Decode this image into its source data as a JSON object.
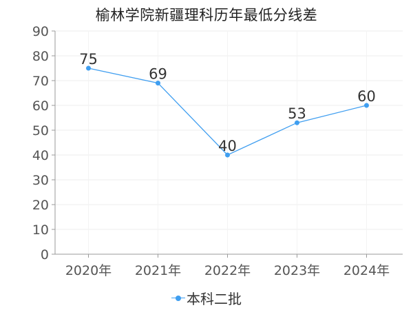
{
  "chart_data": {
    "type": "line",
    "title": "榆林学院新疆理科历年最低分线差",
    "xlabel": "",
    "ylabel": "",
    "categories": [
      "2020年",
      "2021年",
      "2022年",
      "2023年",
      "2024年"
    ],
    "series": [
      {
        "name": "本科二批",
        "values": [
          75,
          69,
          40,
          53,
          60
        ],
        "color": "#3f9ef0"
      }
    ],
    "ylim": [
      0,
      90
    ],
    "yticks": [
      0,
      10,
      20,
      30,
      40,
      50,
      60,
      70,
      80,
      90
    ],
    "data_labels": true,
    "grid": true,
    "legend_position": "bottom"
  }
}
